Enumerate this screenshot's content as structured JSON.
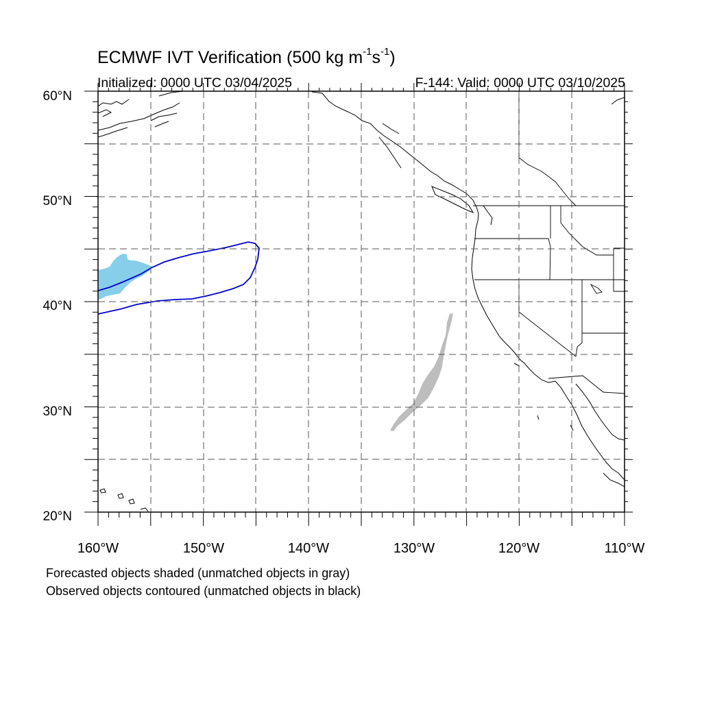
{
  "title": {
    "main": "ECMWF IVT Verification (500 kg m",
    "sup1": "-1",
    "mid": "s",
    "sup2": "-1",
    "close": ")"
  },
  "subtitle": {
    "initialized": "Initialized: 0000 UTC 03/04/2025",
    "valid": "F-144: Valid: 0000 UTC 03/10/2025"
  },
  "map": {
    "lon_range": [
      -160,
      -110
    ],
    "lat_range": [
      20,
      60
    ],
    "grid_step_deg": 5,
    "gridlines": true,
    "lat_labels": [
      "60°N",
      "50°N",
      "40°N",
      "30°N",
      "20°N"
    ],
    "lon_labels": [
      "160°W",
      "150°W",
      "140°W",
      "130°W",
      "120°W",
      "110°W"
    ],
    "colors": {
      "forecast_matched": "#87ceeb",
      "forecast_unmatched": "#bdbdbd",
      "observed_matched": "#0000d0",
      "coastline": "#000000",
      "grid": "#555555"
    }
  },
  "legend": {
    "line1": "Forecasted objects shaded (unmatched objects in gray)",
    "line2": "Observed objects contoured (unmatched objects in black)"
  }
}
